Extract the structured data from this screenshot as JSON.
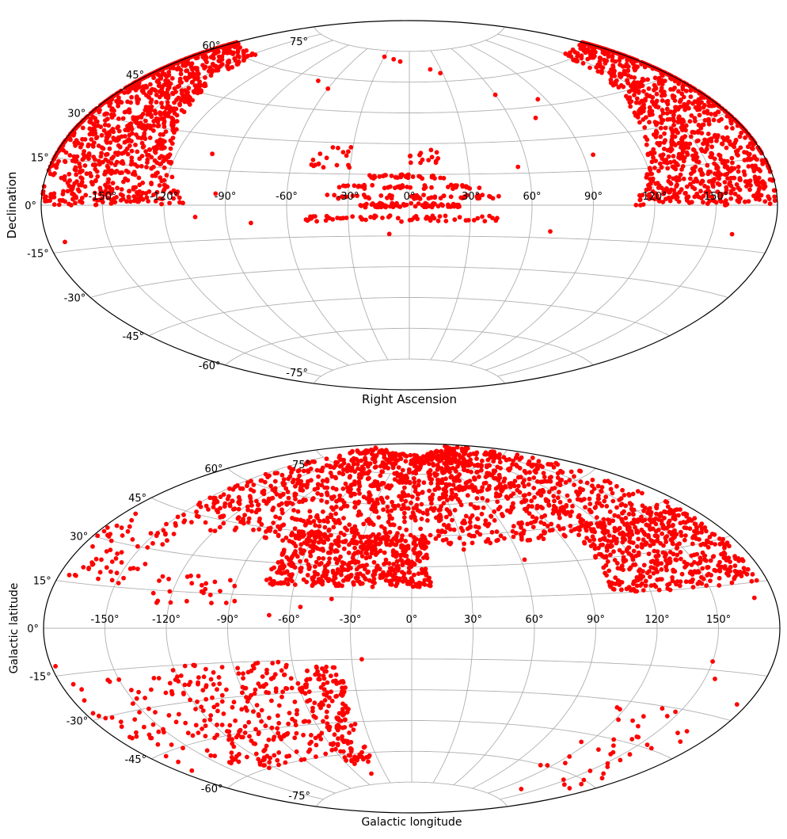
{
  "point_color": "#ff0000",
  "grid_color": "#b0b0b0",
  "chart_data": [
    {
      "type": "scatter",
      "projection": "aitoff",
      "title": "",
      "xlabel": "Right Ascension",
      "ylabel": "Declination",
      "xticks": [
        "-150°",
        "-120°",
        "-90°",
        "-60°",
        "-30°",
        "0°",
        "30°",
        "60°",
        "90°",
        "120°",
        "150°"
      ],
      "yticks": [
        "-75°",
        "-60°",
        "-45°",
        "-30°",
        "-15°",
        "0°",
        "15°",
        "30°",
        "45°",
        "60°",
        "75°"
      ],
      "xlim": [
        -180,
        180
      ],
      "ylim": [
        -90,
        90
      ],
      "grid": true,
      "regions": [
        {
          "lon": [
            -178,
            -110
          ],
          "lat": [
            0,
            62
          ],
          "n": 1100,
          "tilt": -1.2
        },
        {
          "lon": [
            110,
            178
          ],
          "lat": [
            0,
            62
          ],
          "n": 1100,
          "tilt": 1.2
        },
        {
          "lon": [
            -25,
            25
          ],
          "lat": [
            -1,
            1
          ],
          "n": 70
        },
        {
          "lon": [
            -55,
            50
          ],
          "lat": [
            -8,
            -5
          ],
          "n": 60
        },
        {
          "lon": [
            -45,
            45
          ],
          "lat": [
            3,
            5
          ],
          "n": 50
        },
        {
          "lon": [
            -35,
            35
          ],
          "lat": [
            8,
            10
          ],
          "n": 40
        },
        {
          "lon": [
            -20,
            20
          ],
          "lat": [
            13,
            15
          ],
          "n": 30
        },
        {
          "lon": [
            -50,
            -30
          ],
          "lat": [
            18,
            28
          ],
          "n": 18
        },
        {
          "lon": [
            0,
            15
          ],
          "lat": [
            20,
            30
          ],
          "n": 14
        }
      ],
      "scattered_points": [
        {
          "x": -30,
          "y": 72
        },
        {
          "x": -18,
          "y": 71
        },
        {
          "x": -10,
          "y": 70
        },
        {
          "x": 20,
          "y": 66
        },
        {
          "x": 28,
          "y": 64
        },
        {
          "x": -72,
          "y": 58
        },
        {
          "x": -60,
          "y": 55
        },
        {
          "x": 60,
          "y": 52
        },
        {
          "x": 85,
          "y": 48
        },
        {
          "x": 75,
          "y": 40
        },
        {
          "x": -102,
          "y": 22
        },
        {
          "x": 95,
          "y": 22
        },
        {
          "x": -78,
          "y": -8
        },
        {
          "x": 70,
          "y": -12
        },
        {
          "x": -10,
          "y": -14
        },
        {
          "x": -105,
          "y": -5
        },
        {
          "x": -95,
          "y": 5
        },
        {
          "x": 55,
          "y": 18
        },
        {
          "x": -172,
          "y": -12
        },
        {
          "x": 160,
          "y": -10
        }
      ]
    },
    {
      "type": "scatter",
      "projection": "aitoff",
      "title": "",
      "xlabel": "Galactic longitude",
      "ylabel": "Galactic latitude",
      "xticks": [
        "-150°",
        "-120°",
        "-90°",
        "-60°",
        "-30°",
        "0°",
        "30°",
        "60°",
        "90°",
        "120°",
        "150°"
      ],
      "yticks": [
        "-75°",
        "-60°",
        "-45°",
        "-30°",
        "-15°",
        "0°",
        "15°",
        "30°",
        "45°",
        "60°",
        "75°"
      ],
      "xlim": [
        -180,
        180
      ],
      "ylim": [
        -90,
        90
      ],
      "grid": true,
      "regions": [
        {
          "lon": [
            -150,
            170
          ],
          "lat": [
            40,
            85
          ],
          "n": 1400
        },
        {
          "lon": [
            -75,
            10
          ],
          "lat": [
            20,
            45
          ],
          "n": 500
        },
        {
          "lon": [
            100,
            175
          ],
          "lat": [
            15,
            45
          ],
          "n": 500
        },
        {
          "lon": [
            -178,
            -140
          ],
          "lat": [
            15,
            40
          ],
          "n": 60
        },
        {
          "lon": [
            -130,
            -90
          ],
          "lat": [
            10,
            22
          ],
          "n": 25
        },
        {
          "lon": [
            -130,
            -60
          ],
          "lat": [
            -60,
            -15
          ],
          "n": 220
        },
        {
          "lon": [
            -60,
            -35
          ],
          "lat": [
            -65,
            -18
          ],
          "n": 160
        },
        {
          "lon": [
            -175,
            -130
          ],
          "lat": [
            -55,
            -18
          ],
          "n": 60
        },
        {
          "lon": [
            110,
            170
          ],
          "lat": [
            -70,
            -30
          ],
          "n": 40
        }
      ],
      "scattered_points": [
        {
          "x": -88,
          "y": 12
        },
        {
          "x": -70,
          "y": 6
        },
        {
          "x": -55,
          "y": 10
        },
        {
          "x": -40,
          "y": 14
        },
        {
          "x": -25,
          "y": -15
        },
        {
          "x": 30,
          "y": 38
        },
        {
          "x": 62,
          "y": 32
        },
        {
          "x": 170,
          "y": 10
        },
        {
          "x": 150,
          "y": -12
        },
        {
          "x": 155,
          "y": -18
        },
        {
          "x": -45,
          "y": -70
        },
        {
          "x": 175,
          "y": -25
        },
        {
          "x": -178,
          "y": -12
        },
        {
          "x": -176,
          "y": -28
        }
      ]
    }
  ]
}
